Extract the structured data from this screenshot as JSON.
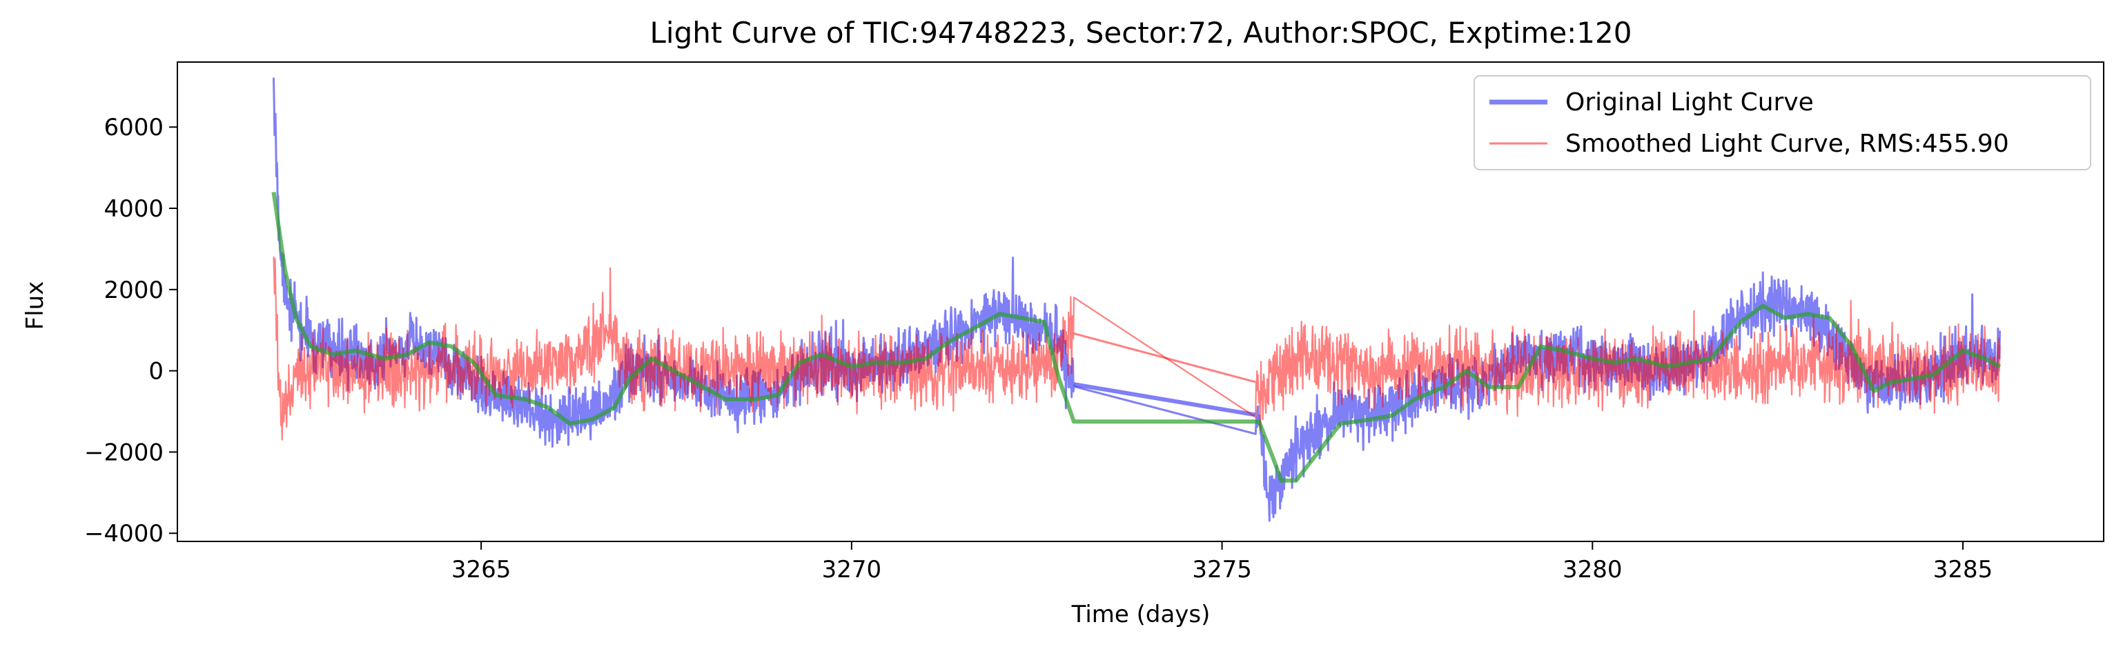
{
  "chart_data": {
    "type": "line",
    "title": "Light Curve of TIC:94748223, Sector:72, Author:SPOC, Exptime:120",
    "xlabel": "Time (days)",
    "ylabel": "Flux",
    "xlim": [
      3260.9,
      3286.9
    ],
    "ylim": [
      -4200,
      7600
    ],
    "xticks": [
      3265,
      3270,
      3275,
      3280,
      3285
    ],
    "yticks": [
      -4000,
      -2000,
      0,
      2000,
      4000,
      6000
    ],
    "xtick_labels": [
      "3265",
      "3270",
      "3275",
      "3280",
      "3285"
    ],
    "ytick_labels": [
      "−4000",
      "−2000",
      "0",
      "2000",
      "4000",
      "6000"
    ],
    "grid": false,
    "legend_position": "top-right",
    "series": [
      {
        "name": "Original Light Curve",
        "color": "#0000ee",
        "kind": "noisy",
        "noise": 330,
        "x": [
          3262.2,
          3262.3,
          3262.5,
          3262.8,
          3263.2,
          3263.6,
          3264.0,
          3264.4,
          3264.8,
          3265.2,
          3265.6,
          3266.0,
          3266.4,
          3266.7,
          3267.0,
          3267.5,
          3268.0,
          3268.5,
          3269.0,
          3269.5,
          3270.0,
          3270.5,
          3271.0,
          3271.5,
          3272.0,
          3272.5,
          3272.8,
          3272.9,
          3275.5,
          3275.6,
          3275.8,
          3276.0,
          3276.3,
          3276.6,
          3277.0,
          3277.5,
          3278.0,
          3278.5,
          3279.0,
          3279.5,
          3280.0,
          3280.5,
          3281.0,
          3281.5,
          3282.0,
          3282.5,
          3283.0,
          3283.4,
          3283.8,
          3284.2,
          3284.6,
          3285.0,
          3285.5
        ],
        "y": [
          6800,
          2500,
          1200,
          600,
          400,
          300,
          600,
          500,
          -200,
          -600,
          -800,
          -1300,
          -1100,
          -900,
          100,
          -100,
          -500,
          -700,
          -600,
          300,
          0,
          200,
          500,
          900,
          1400,
          1100,
          900,
          -300,
          -1100,
          -3000,
          -2600,
          -2000,
          -1500,
          -1000,
          -1100,
          -800,
          -300,
          -400,
          500,
          400,
          300,
          200,
          0,
          300,
          1400,
          1700,
          1400,
          300,
          -500,
          -300,
          -200,
          500,
          300
        ]
      },
      {
        "name": "Smoothed Light Curve, RMS:455.90",
        "color": "#ff0000",
        "kind": "noisy",
        "noise": 420,
        "x": [
          3262.2,
          3262.3,
          3262.5,
          3263.0,
          3263.5,
          3264.0,
          3264.5,
          3265.0,
          3265.5,
          3266.0,
          3266.5,
          3266.7,
          3267.0,
          3268.0,
          3269.0,
          3270.0,
          3271.0,
          3272.0,
          3272.8,
          3272.9,
          3275.4,
          3275.5,
          3276.0,
          3277.0,
          3278.0,
          3279.0,
          3280.0,
          3281.0,
          3282.0,
          3283.0,
          3284.0,
          3285.0,
          3285.5
        ],
        "y": [
          2500,
          -1200,
          0,
          100,
          0,
          -50,
          100,
          0,
          0,
          200,
          600,
          1200,
          0,
          0,
          100,
          0,
          0,
          0,
          200,
          950,
          150,
          -700,
          300,
          0,
          100,
          0,
          0,
          100,
          0,
          200,
          0,
          100,
          0
        ]
      },
      {
        "name": "",
        "color": "#2ca02c",
        "kind": "smooth",
        "noise": 0,
        "x": [
          3262.2,
          3262.35,
          3262.5,
          3262.7,
          3263.0,
          3263.3,
          3263.7,
          3264.0,
          3264.3,
          3264.6,
          3264.9,
          3265.2,
          3265.6,
          3265.9,
          3266.2,
          3266.5,
          3266.8,
          3267.0,
          3267.3,
          3267.6,
          3268.0,
          3268.3,
          3268.7,
          3269.0,
          3269.3,
          3269.6,
          3270.0,
          3270.3,
          3270.7,
          3271.0,
          3271.3,
          3271.6,
          3272.0,
          3272.3,
          3272.6,
          3272.8,
          3273.0,
          3275.5,
          3275.7,
          3275.8,
          3276.0,
          3276.3,
          3276.6,
          3277.0,
          3277.3,
          3277.6,
          3278.0,
          3278.3,
          3278.6,
          3279.0,
          3279.3,
          3279.6,
          3280.0,
          3280.3,
          3280.6,
          3281.0,
          3281.3,
          3281.6,
          3282.0,
          3282.3,
          3282.6,
          3282.9,
          3283.2,
          3283.5,
          3283.8,
          3284.0,
          3284.3,
          3284.6,
          3285.0,
          3285.3,
          3285.5
        ],
        "y": [
          4400,
          2500,
          1300,
          600,
          400,
          500,
          300,
          400,
          700,
          600,
          200,
          -600,
          -700,
          -900,
          -1300,
          -1200,
          -900,
          -200,
          300,
          0,
          -400,
          -700,
          -700,
          -600,
          200,
          400,
          100,
          200,
          200,
          300,
          700,
          1000,
          1400,
          1300,
          1200,
          -200,
          -1250,
          -1250,
          -2200,
          -2700,
          -2700,
          -2000,
          -1300,
          -1200,
          -1100,
          -700,
          -400,
          0,
          -400,
          -400,
          600,
          500,
          300,
          200,
          300,
          100,
          200,
          300,
          1200,
          1600,
          1300,
          1400,
          1300,
          600,
          -500,
          -300,
          -200,
          -100,
          500,
          300,
          100
        ]
      }
    ]
  },
  "legend": {
    "items": [
      {
        "label": "Original Light Curve",
        "color": "#0000ee"
      },
      {
        "label": "Smoothed Light Curve, RMS:455.90",
        "color": "#ff0000"
      }
    ]
  }
}
